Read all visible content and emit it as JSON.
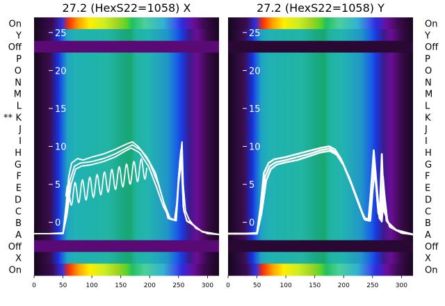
{
  "chart_data": [
    {
      "type": "heatmap",
      "title": "27.2 (HexS22=1058) X",
      "xticks": [
        0,
        50,
        100,
        150,
        200,
        250,
        300
      ],
      "xlim": [
        0,
        320
      ],
      "yticks": [
        0,
        5,
        10,
        15,
        20,
        25
      ],
      "ylim": [
        -7,
        27
      ],
      "row_labels": [
        "On",
        "Y",
        "Off",
        "P",
        "O",
        "N",
        "M",
        "L",
        "K",
        "J",
        "I",
        "H",
        "G",
        "F",
        "E",
        "D",
        "C",
        "B",
        "A",
        "Off",
        "X",
        "On"
      ],
      "row_label_side": "left",
      "marked_row": {
        "row": "K",
        "marker": "**"
      },
      "line_series_values": [
        {
          "x": [
            0,
            25,
            50,
            55,
            60,
            65,
            75,
            85,
            100,
            120,
            140,
            160,
            170,
            180,
            195,
            210,
            220,
            232,
            243,
            247,
            252,
            256,
            258,
            262,
            268,
            280,
            300,
            320
          ],
          "y": [
            -1.5,
            -1.5,
            -1.4,
            2,
            6,
            7.8,
            8.4,
            8.2,
            8.6,
            9,
            9.6,
            10.3,
            10.6,
            10,
            8.6,
            6.5,
            3.8,
            0.5,
            0.3,
            2.5,
            8,
            10.6,
            5,
            1.5,
            0.4,
            -0.8,
            -1.5,
            -1.6
          ]
        },
        {
          "x": [
            0,
            25,
            50,
            56,
            62,
            70,
            80,
            100,
            120,
            140,
            160,
            170,
            185,
            200,
            215,
            225,
            235,
            245,
            250,
            254,
            258,
            264,
            270,
            290,
            320
          ],
          "y": [
            -1.5,
            -1.5,
            -1.5,
            1.5,
            5.5,
            7.4,
            7.8,
            8,
            8.4,
            9,
            9.8,
            10.2,
            9.5,
            7.8,
            5,
            2.5,
            0.6,
            0.2,
            6,
            9.5,
            2,
            0.2,
            0,
            -1.2,
            -1.6
          ]
        },
        {
          "x": [
            0,
            25,
            50,
            57,
            64,
            72,
            82,
            100,
            120,
            140,
            158,
            168,
            182,
            198,
            212,
            224,
            236,
            246,
            250,
            255,
            259,
            265,
            272,
            292,
            320
          ],
          "y": [
            -1.5,
            -1.5,
            -1.5,
            1,
            5,
            7,
            7.4,
            7.6,
            8,
            8.6,
            9.4,
            9.8,
            9.2,
            7.4,
            4.6,
            2,
            0.4,
            0.2,
            5,
            8.5,
            1.5,
            0.1,
            -0.2,
            -1.3,
            -1.6
          ]
        }
      ],
      "oscillating_series": {
        "x_start": 55,
        "x_end": 195,
        "y_start": 3.4,
        "y_end": 7.2,
        "cycles": 11,
        "amplitude": 1.4
      }
    },
    {
      "type": "heatmap",
      "title": "27.2 (HexS22=1058) Y",
      "xticks": [
        0,
        50,
        100,
        150,
        200,
        250,
        300
      ],
      "xlim": [
        0,
        320
      ],
      "yticks": [
        0,
        5,
        10,
        15,
        20,
        25
      ],
      "ylim": [
        -7,
        27
      ],
      "row_labels": [
        "On",
        "Y",
        "Off",
        "P",
        "O",
        "N",
        "M",
        "L",
        "K",
        "J",
        "I",
        "H",
        "G",
        "F",
        "E",
        "D",
        "C",
        "B",
        "A",
        "Off",
        "X",
        "On"
      ],
      "row_label_side": "right",
      "line_series_values": [
        {
          "x": [
            0,
            30,
            50,
            56,
            62,
            70,
            80,
            100,
            120,
            140,
            160,
            175,
            185,
            195,
            210,
            225,
            235,
            243,
            247,
            252,
            258,
            262,
            266,
            270,
            280,
            300,
            320
          ],
          "y": [
            -1.5,
            -1.5,
            -1.4,
            2,
            6.5,
            7.8,
            8.3,
            8.6,
            9,
            9.4,
            9.8,
            10,
            9.6,
            8.4,
            5.8,
            2.8,
            0.6,
            0.4,
            4,
            9.5,
            4,
            0.5,
            9,
            1.5,
            -0.6,
            -1.4,
            -1.6
          ]
        },
        {
          "x": [
            0,
            30,
            50,
            57,
            64,
            72,
            82,
            100,
            120,
            140,
            160,
            175,
            187,
            198,
            212,
            226,
            236,
            244,
            248,
            253,
            259,
            264,
            268,
            274,
            290,
            320
          ],
          "y": [
            -1.5,
            -1.5,
            -1.5,
            1.6,
            6,
            7.4,
            7.9,
            8.2,
            8.6,
            9,
            9.5,
            9.7,
            9.2,
            7.9,
            5.3,
            2.4,
            0.4,
            0.2,
            5,
            8,
            2,
            0.3,
            6,
            0.2,
            -1,
            -1.6
          ]
        },
        {
          "x": [
            0,
            30,
            50,
            58,
            66,
            74,
            84,
            100,
            120,
            140,
            160,
            176,
            188,
            200,
            214,
            228,
            238,
            246,
            250,
            254,
            260,
            266,
            270,
            276,
            292,
            320
          ],
          "y": [
            -1.5,
            -1.5,
            -1.5,
            1.2,
            5.5,
            7,
            7.6,
            7.9,
            8.2,
            8.7,
            9.2,
            9.4,
            8.9,
            7.5,
            4.9,
            2,
            0.3,
            0.2,
            4,
            7,
            1.2,
            0.1,
            4,
            0,
            -1.1,
            -1.6
          ]
        }
      ]
    }
  ]
}
